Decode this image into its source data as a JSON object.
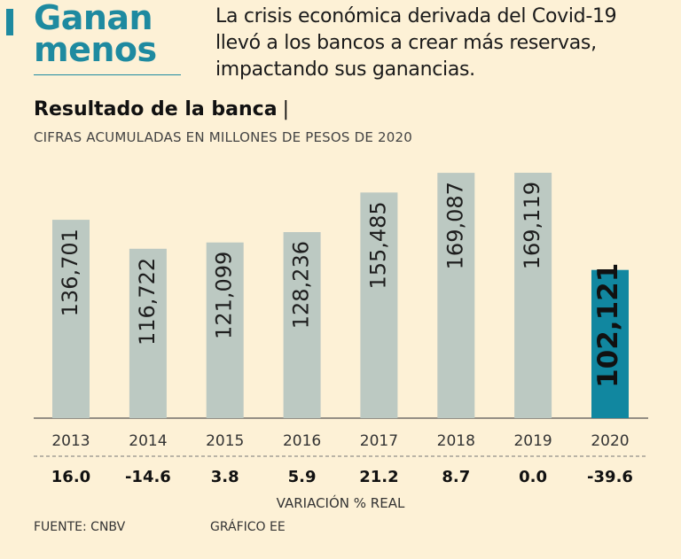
{
  "header": {
    "title_line1": "Ganan",
    "title_line2": "menos",
    "intro_line1": "La crisis económica derivada del Covid-19",
    "intro_line2": "llevó a los bancos a crear más reservas,",
    "intro_line3": "impactando sus ganancias."
  },
  "colors": {
    "accent": "#1e8aa0",
    "bar": "#bcc9c2",
    "highlight_bar": "#1187a0",
    "background": "#fdf1d6"
  },
  "footer": {
    "source": "FUENTE: CNBV",
    "credit": "GRÁFICO EE"
  },
  "chart_data": {
    "type": "bar",
    "title": "Resultado de la banca",
    "subtitle": "CIFRAS ACUMULADAS EN MILLONES DE PESOS DE 2020",
    "categories": [
      "2013",
      "2014",
      "2015",
      "2016",
      "2017",
      "2018",
      "2019",
      "2020"
    ],
    "values": [
      136701,
      116722,
      121099,
      128236,
      155485,
      169087,
      169119,
      102121
    ],
    "value_labels": [
      "136,701",
      "116,722",
      "121,099",
      "128,236",
      "155,485",
      "169,087",
      "169,119",
      "102,121"
    ],
    "highlight_category": "2020",
    "variation": [
      "16.0",
      "-14.6",
      "3.8",
      "5.9",
      "21.2",
      "8.7",
      "0.0",
      "-39.6"
    ],
    "variation_label": "VARIACIÓN % REAL",
    "xlabel": "",
    "ylabel": "",
    "ylim": [
      0,
      169119
    ],
    "grid": false
  }
}
